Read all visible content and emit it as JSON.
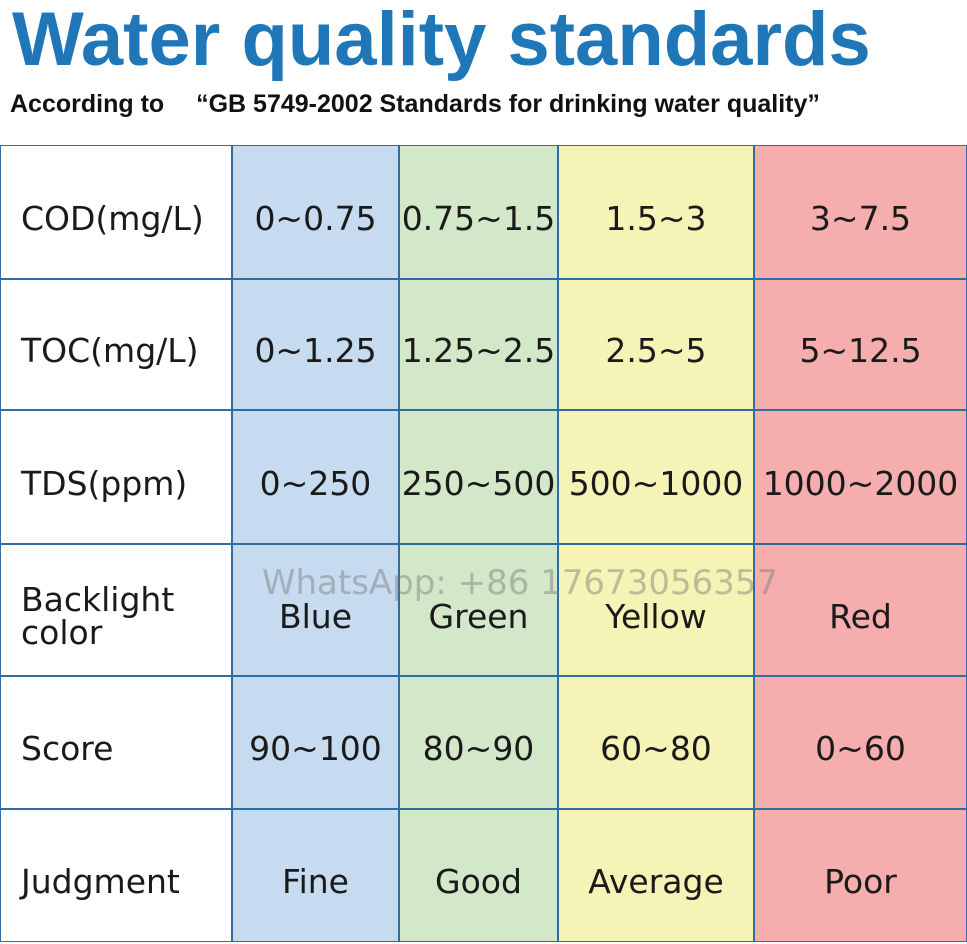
{
  "header": {
    "title": "Water quality standards",
    "subtitle": "According to 　“GB 5749-2002 Standards for drinking water quality”"
  },
  "table": {
    "rows": [
      [
        "COD(mg/L)",
        "0~0.75",
        "0.75~1.5",
        "1.5~3",
        "3~7.5"
      ],
      [
        "TOC(mg/L)",
        "0~1.25",
        "1.25~2.5",
        "2.5~5",
        "5~12.5"
      ],
      [
        "TDS(ppm)",
        "0~250",
        "250~500",
        "500~1000",
        "1000~2000"
      ],
      [
        "Backlight color",
        "Blue",
        "Green",
        "Yellow",
        "Red"
      ],
      [
        "Score",
        "90~100",
        "80~90",
        "60~80",
        "0~60"
      ],
      [
        "Judgment",
        "Fine",
        "Good",
        "Average",
        "Poor"
      ]
    ]
  },
  "watermark": "WhatsApp: +86 17673056357"
}
